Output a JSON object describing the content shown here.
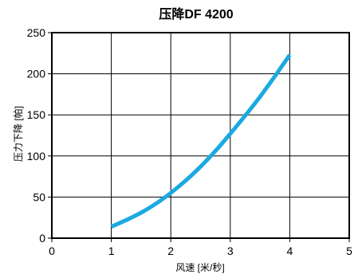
{
  "chart_data": {
    "type": "line",
    "title": "压降DF 4200",
    "xlabel": "风速 [米/秒]",
    "ylabel": "压力下降 [帕]",
    "xlim": [
      0,
      5
    ],
    "ylim": [
      0,
      250
    ],
    "x_ticks": [
      0,
      1,
      2,
      3,
      4,
      5
    ],
    "y_ticks": [
      0,
      50,
      100,
      150,
      200,
      250
    ],
    "x_tick_labels": [
      "0",
      "1",
      "2",
      "3",
      "4",
      "5"
    ],
    "y_tick_labels": [
      "0",
      "50",
      "100",
      "150",
      "200",
      "250"
    ],
    "grid": true,
    "legend": "none",
    "series": [
      {
        "color": "#1ba9e1",
        "x": [
          1.0,
          1.25,
          1.5,
          1.75,
          2.0,
          2.25,
          2.5,
          2.75,
          3.0,
          3.25,
          3.5,
          3.75,
          4.0
        ],
        "y": [
          14,
          22,
          31,
          42,
          55,
          70,
          87,
          106,
          127,
          149,
          172,
          197,
          223
        ]
      }
    ]
  }
}
